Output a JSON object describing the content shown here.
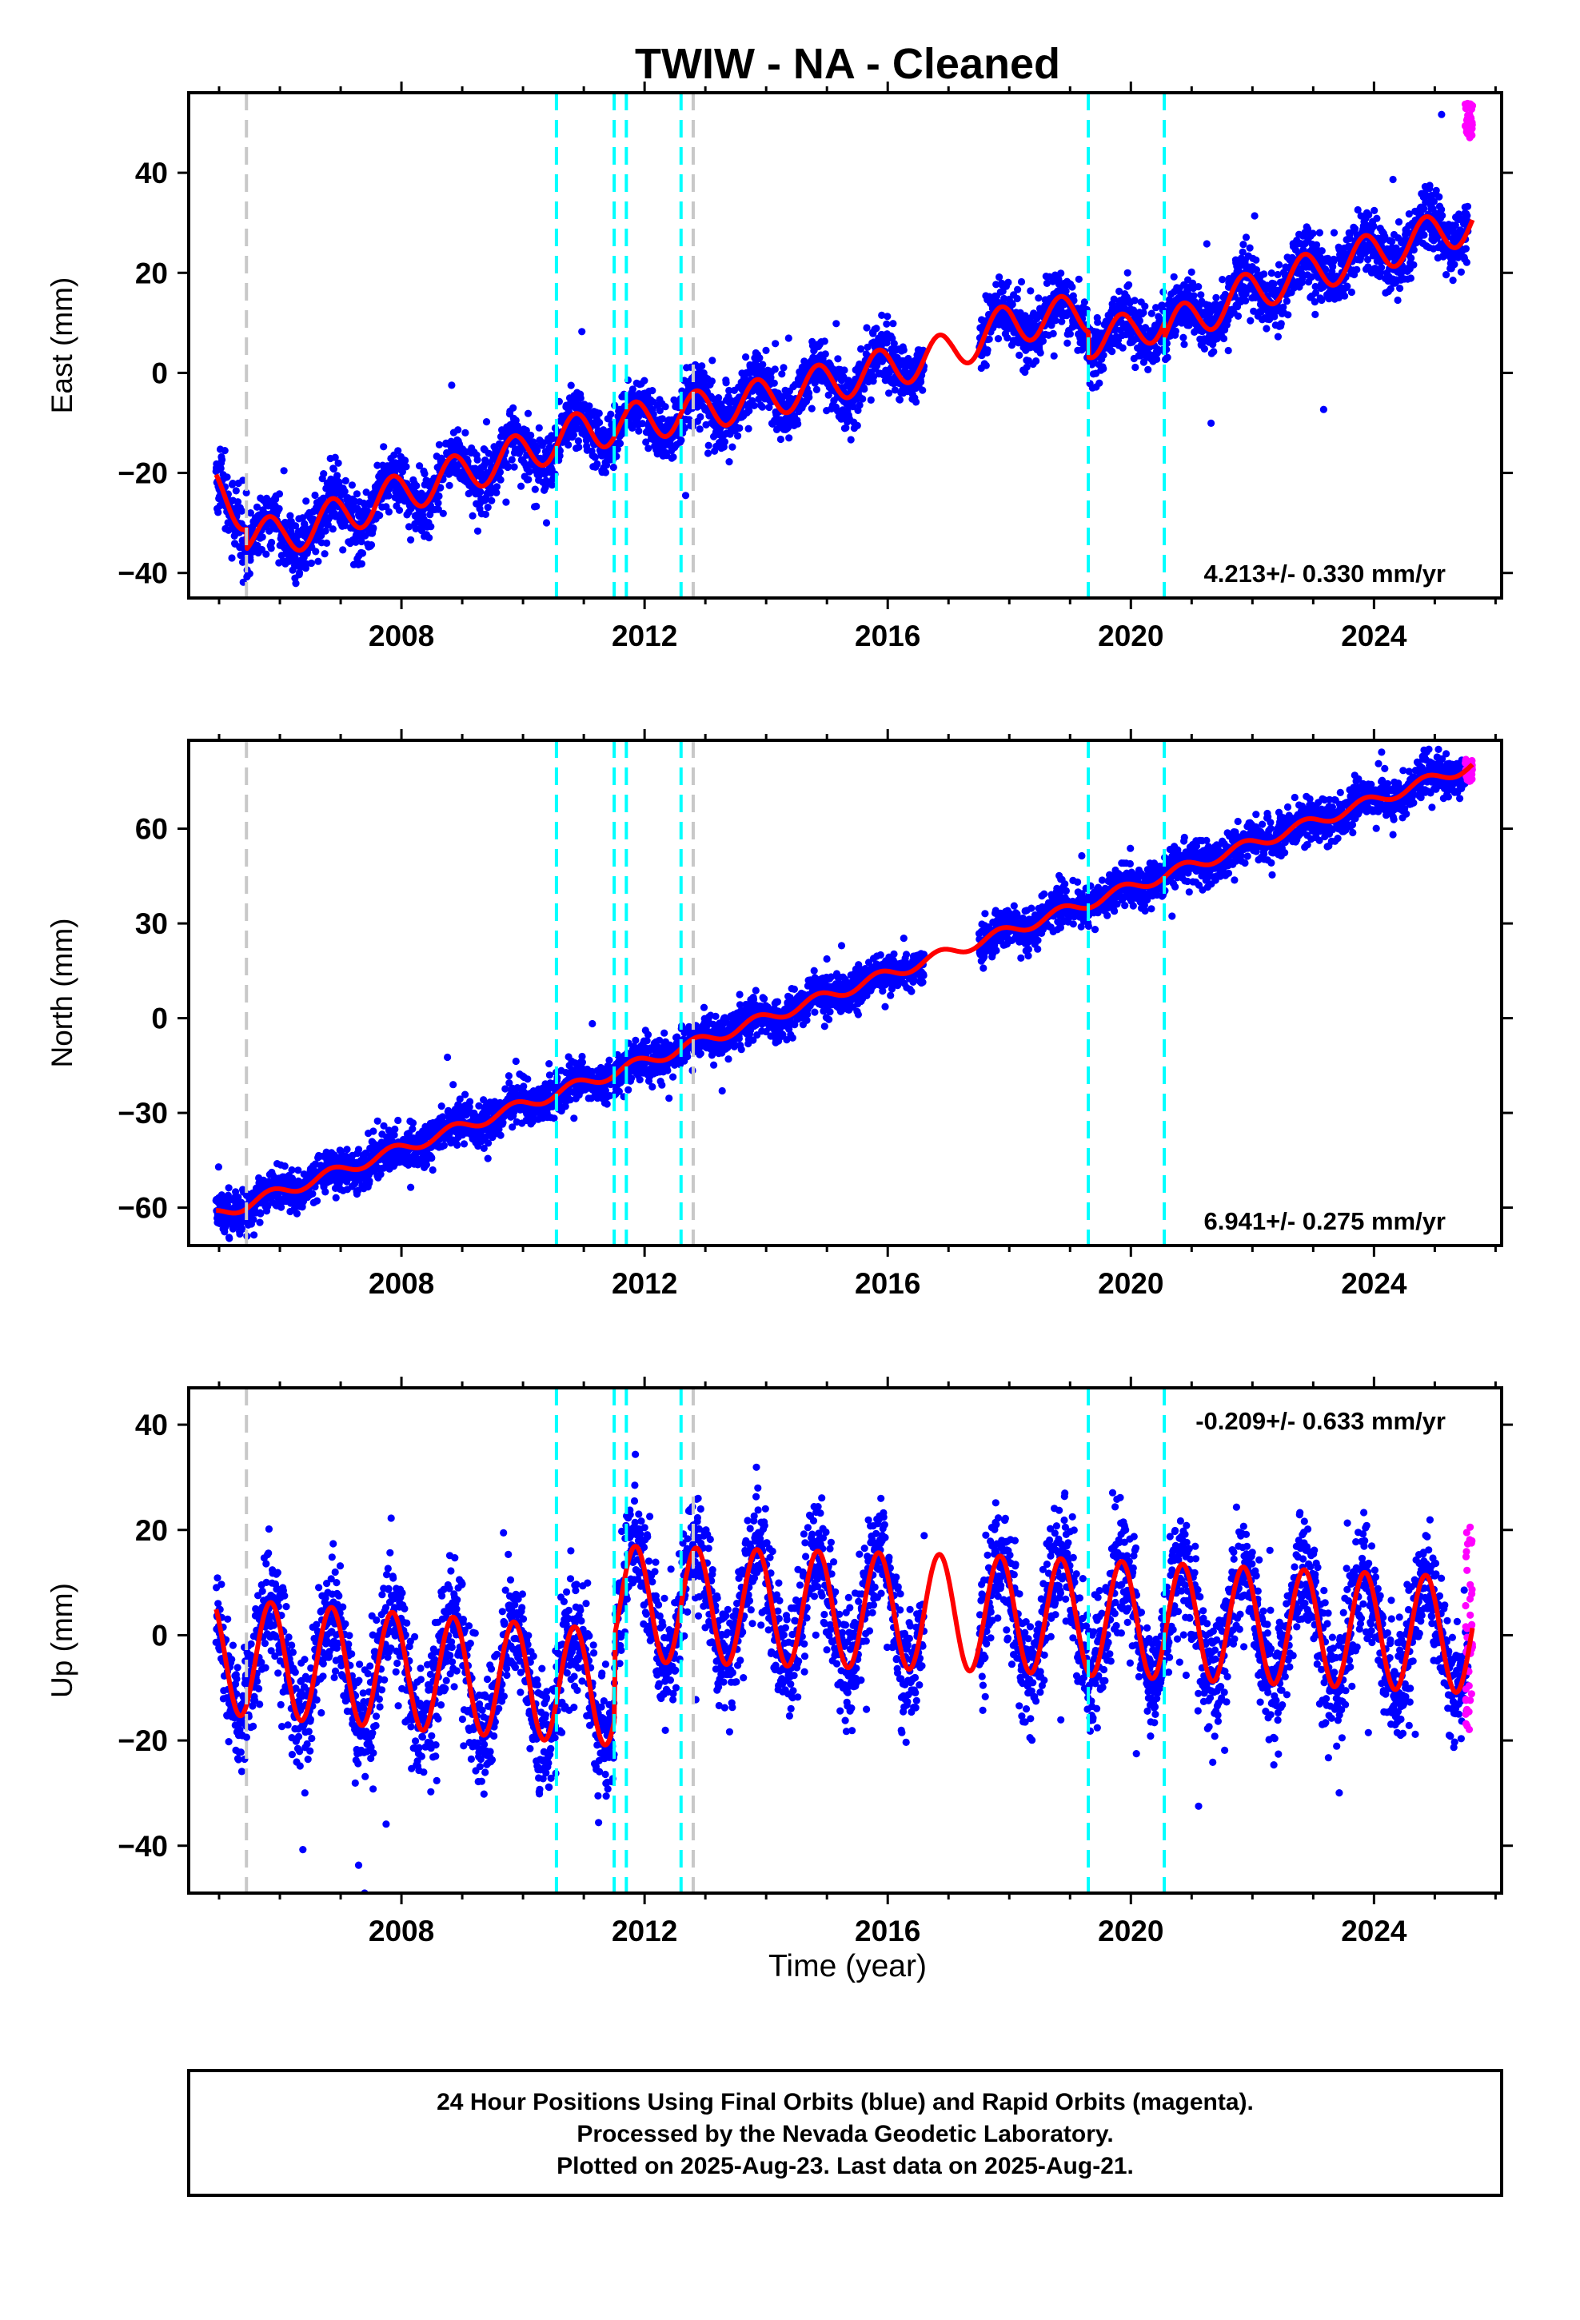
{
  "title": "TWIW  - NA - Cleaned",
  "x_axis_label": "Time (year)",
  "footer": [
    "24 Hour Positions Using Final Orbits (blue) and Rapid Orbits (magenta).",
    "Processed by the Nevada Geodetic Laboratory.",
    "Plotted on 2025-Aug-23. Last data on 2025-Aug-21."
  ],
  "colors": {
    "final_orbits": "#0000ff",
    "rapid_orbits": "#ff00ff",
    "model_fit": "#ff0000",
    "steps_equipment": "#00ffff",
    "steps_other": "#c8c8c8"
  },
  "vertical_lines": {
    "cyan": [
      2010.55,
      2011.5,
      2011.7,
      2012.6,
      2019.3,
      2020.55
    ],
    "gray": [
      2005.45,
      2012.8
    ]
  },
  "gaps": [
    [
      2016.6,
      2017.5
    ]
  ],
  "chart_data": [
    {
      "type": "scatter",
      "panel": "east",
      "ylabel": "East (mm)",
      "rate_label": "4.213+/- 0.330 mm/yr",
      "xlim": [
        2004.5,
        2026.1
      ],
      "ylim": [
        -45,
        56
      ],
      "xticks": [
        2008,
        2012,
        2016,
        2020,
        2024
      ],
      "yticks": [
        -40,
        -20,
        0,
        20,
        40
      ],
      "model_knots": {
        "x": [
          2005.0,
          2005.45,
          2006.0,
          2008.0,
          2010.0,
          2011.0,
          2012.0,
          2014.0,
          2016.0,
          2017.0,
          2018.0,
          2020.0,
          2022.0,
          2024.0,
          2025.6
        ],
        "y": [
          -24.0,
          -28.0,
          -29.0,
          -20.0,
          -12.0,
          -7.5,
          -5.5,
          -1.0,
          5.0,
          8.0,
          14.0,
          17.0,
          28.5,
          36.0,
          42.0
        ]
      },
      "offsets": [
        {
          "x": 2005.45,
          "dy": -4
        },
        {
          "x": 2019.3,
          "dy": -5
        },
        {
          "x": 2020.55,
          "dy": -3
        }
      ],
      "seasonal_amplitude": 4.0,
      "scatter_sigma": 3.0,
      "rapid_range": [
        47,
        54
      ]
    },
    {
      "type": "scatter",
      "panel": "north",
      "ylabel": "North (mm)",
      "rate_label": "6.941+/- 0.275 mm/yr",
      "xlim": [
        2004.5,
        2026.1
      ],
      "ylim": [
        -72,
        88
      ],
      "xticks": [
        2008,
        2012,
        2016,
        2020,
        2024
      ],
      "yticks": [
        -60,
        -30,
        0,
        30,
        60
      ],
      "model_knots": {
        "x": [
          2005.0,
          2025.6
        ],
        "y": [
          -62.0,
          80.0
        ]
      },
      "offsets": [],
      "seasonal_amplitude": 1.8,
      "scatter_sigma": 3.2,
      "rapid_range": [
        75,
        82
      ]
    },
    {
      "type": "scatter",
      "panel": "up",
      "ylabel": "Up (mm)",
      "rate_label": "-0.209+/- 0.633 mm/yr",
      "xlim": [
        2004.5,
        2026.1
      ],
      "ylim": [
        -49,
        47
      ],
      "xticks": [
        2008,
        2012,
        2016,
        2020,
        2024
      ],
      "yticks": [
        -40,
        -20,
        0,
        20,
        40
      ],
      "model_knots": {
        "x": [
          2005.0,
          2011.5,
          2011.52,
          2018.0,
          2025.6
        ],
        "y": [
          -4.0,
          -10.0,
          6.0,
          4.0,
          0.0
        ]
      },
      "offsets": [],
      "seasonal_amplitude": 11.0,
      "scatter_sigma": 5.5,
      "rapid_range": [
        -18,
        22
      ]
    }
  ]
}
